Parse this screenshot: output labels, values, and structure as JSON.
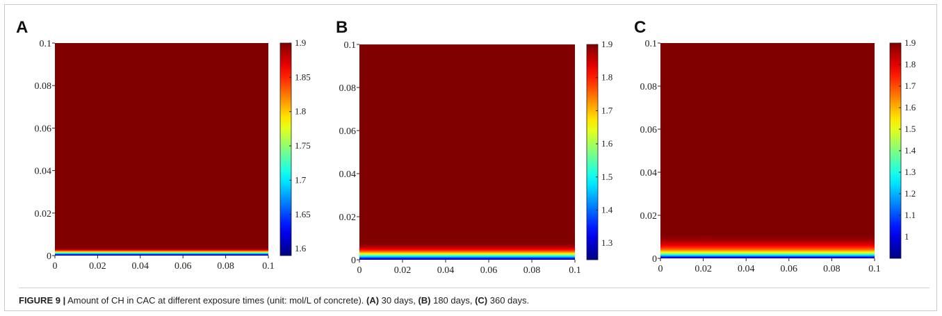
{
  "caption": {
    "label": "FIGURE 9 |",
    "text": " Amount of CH in CAC at different exposure times (unit: mol/L of concrete). ",
    "parts": [
      {
        "tag": "(A)",
        "text": " 30 days, "
      },
      {
        "tag": "(B)",
        "text": " 180 days, "
      },
      {
        "tag": "(C)",
        "text": " 360 days."
      }
    ]
  },
  "colors": {
    "dark_red": "#800000",
    "colormap": "jet",
    "frame_border": "#c9c9c9"
  },
  "chart_data": [
    {
      "type": "heatmap",
      "panel": "A",
      "xlim": [
        0,
        0.1
      ],
      "ylim": [
        0,
        0.1
      ],
      "xticks": [
        "0",
        "0.02",
        "0.04",
        "0.06",
        "0.08",
        "0.1"
      ],
      "yticks": [
        "0",
        "0.02",
        "0.04",
        "0.06",
        "0.08",
        "0.1"
      ],
      "clim": [
        1.59,
        1.9
      ],
      "colorbar_ticks": [
        "1.6",
        "1.65",
        "1.7",
        "1.75",
        "1.8",
        "1.85",
        "1.9"
      ],
      "profile": {
        "y": [
          0,
          0.0005,
          0.001,
          0.0015,
          0.002,
          0.0025,
          0.003,
          0.0035
        ],
        "value": [
          1.59,
          1.64,
          1.7,
          1.76,
          1.82,
          1.86,
          1.89,
          1.9
        ]
      }
    },
    {
      "type": "heatmap",
      "panel": "B",
      "xlim": [
        0,
        0.1
      ],
      "ylim": [
        0,
        0.1
      ],
      "xticks": [
        "0",
        "0.02",
        "0.04",
        "0.06",
        "0.08",
        "0.1"
      ],
      "yticks": [
        "0",
        "0.02",
        "0.04",
        "0.06",
        "0.08",
        "0.1"
      ],
      "clim": [
        1.25,
        1.9
      ],
      "colorbar_ticks": [
        "1.3",
        "1.4",
        "1.5",
        "1.6",
        "1.7",
        "1.8",
        "1.9"
      ],
      "profile": {
        "y": [
          0,
          0.001,
          0.002,
          0.003,
          0.004,
          0.005,
          0.006,
          0.007,
          0.008
        ],
        "value": [
          1.25,
          1.4,
          1.55,
          1.68,
          1.77,
          1.83,
          1.87,
          1.89,
          1.9
        ]
      }
    },
    {
      "type": "heatmap",
      "panel": "C",
      "xlim": [
        0,
        0.1
      ],
      "ylim": [
        0,
        0.1
      ],
      "xticks": [
        "0",
        "0.02",
        "0.04",
        "0.06",
        "0.08",
        "0.1"
      ],
      "yticks": [
        "0",
        "0.02",
        "0.04",
        "0.06",
        "0.08",
        "0.1"
      ],
      "clim": [
        0.9,
        1.9
      ],
      "colorbar_ticks": [
        "1",
        "1.1",
        "1.2",
        "1.3",
        "1.4",
        "1.5",
        "1.6",
        "1.7",
        "1.8",
        "1.9"
      ],
      "profile": {
        "y": [
          0,
          0.001,
          0.002,
          0.003,
          0.004,
          0.006,
          0.008,
          0.01,
          0.011
        ],
        "value": [
          0.9,
          1.15,
          1.38,
          1.55,
          1.67,
          1.79,
          1.86,
          1.89,
          1.9
        ]
      }
    }
  ]
}
